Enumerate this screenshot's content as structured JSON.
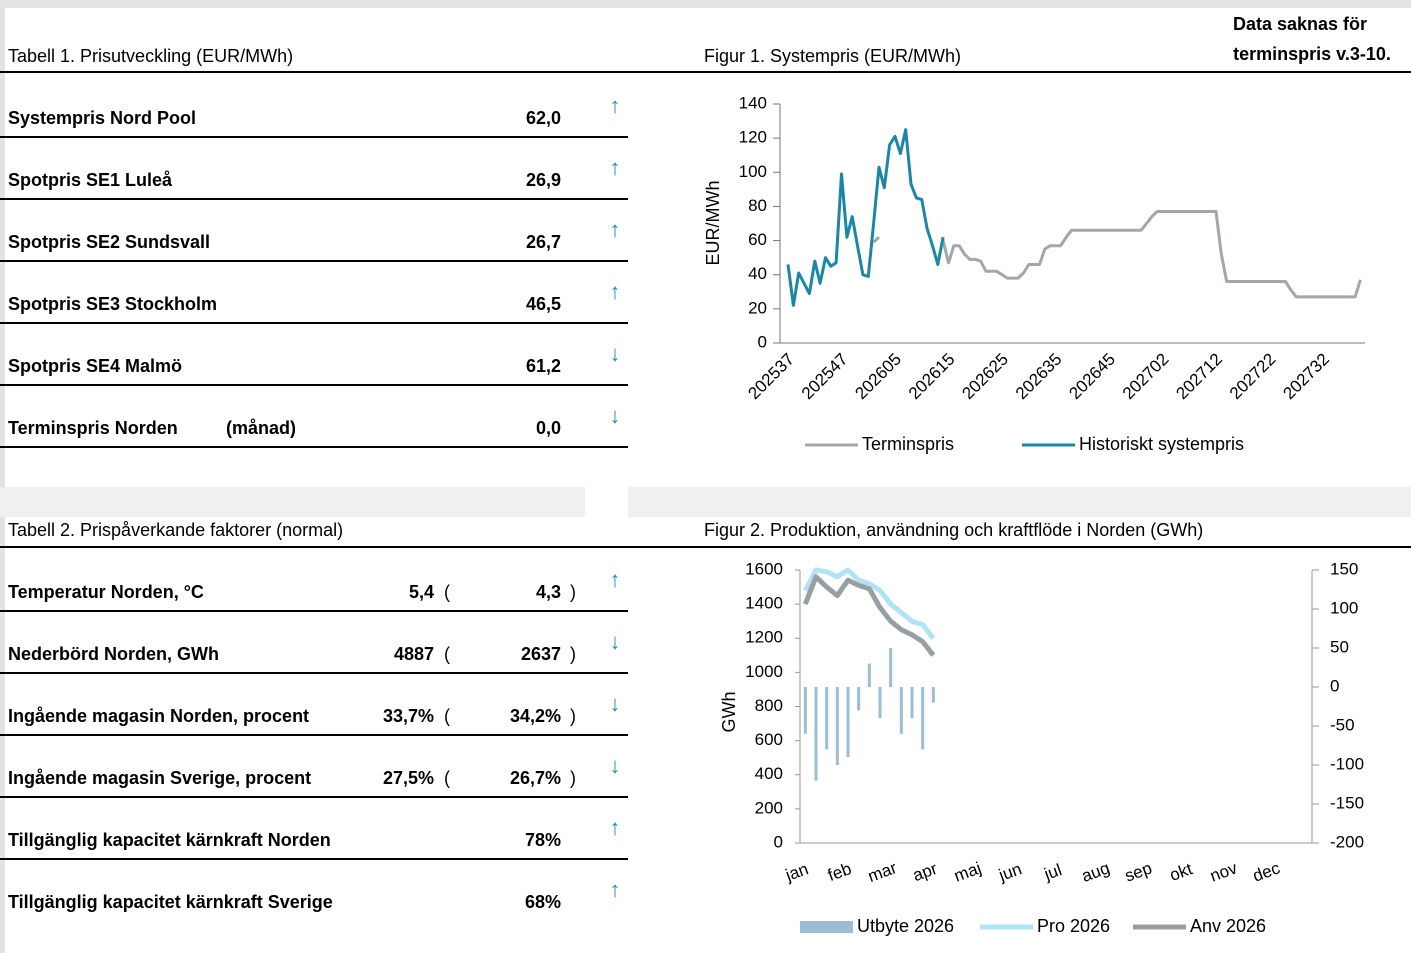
{
  "table1": {
    "title": "Tabell 1. Prisutveckling (EUR/MWh)",
    "rows": [
      {
        "label": "Systempris Nord Pool",
        "value": "62,0",
        "arrow": "↑"
      },
      {
        "label": "Spotpris SE1 Luleå",
        "value": "26,9",
        "arrow": "↑"
      },
      {
        "label": "Spotpris SE2 Sundsvall",
        "value": "26,7",
        "arrow": "↑"
      },
      {
        "label": "Spotpris SE3 Stockholm",
        "value": "46,5",
        "arrow": "↑"
      },
      {
        "label": "Spotpris SE4 Malmö",
        "value": "61,2",
        "arrow": "↓"
      },
      {
        "label": "Terminspris Norden",
        "qualifier": "(månad)",
        "value": "0,0",
        "arrow": "↓"
      }
    ]
  },
  "table2": {
    "title": "Tabell 2. Prispåverkande faktorer (normal)",
    "rows": [
      {
        "label": "Temperatur Norden, °C",
        "value": "5,4",
        "open": "(",
        "normal": "4,3",
        "close": ")",
        "arrow": "↑"
      },
      {
        "label": "Nederbörd Norden, GWh",
        "value": "4887",
        "open": "(",
        "normal": "2637",
        "close": ")",
        "arrow": "↓"
      },
      {
        "label": "Ingående magasin Norden, procent",
        "value": "33,7%",
        "open": "(",
        "normal": "34,2%",
        "close": ")",
        "arrow": "↓"
      },
      {
        "label": "Ingående magasin Sverige, procent",
        "value": "27,5%",
        "open": "(",
        "normal": "26,7%",
        "close": ")",
        "arrow": "↓"
      },
      {
        "label": "Tillgänglig kapacitet kärnkraft Norden",
        "value": "78%",
        "arrow": "↑"
      },
      {
        "label": "Tillgänglig kapacitet kärnkraft Sverige",
        "value": "68%",
        "arrow": "↑"
      }
    ]
  },
  "figure1": {
    "type": "line",
    "title": "Figur 1. Systempris (EUR/MWh)",
    "note": [
      "Data saknas för",
      "terminspris v.3-10."
    ],
    "y_label": "EUR/MWh",
    "ylim": [
      0,
      140
    ],
    "yticks": [
      0,
      20,
      40,
      60,
      80,
      100,
      120,
      140
    ],
    "categories": [
      "202537",
      null,
      null,
      null,
      null,
      null,
      null,
      null,
      null,
      null,
      "202547",
      null,
      null,
      null,
      null,
      null,
      null,
      null,
      null,
      null,
      "202605",
      null,
      null,
      null,
      null,
      null,
      null,
      null,
      null,
      null,
      "202615",
      null,
      null,
      null,
      null,
      null,
      null,
      null,
      null,
      null,
      "202625",
      null,
      null,
      null,
      null,
      null,
      null,
      null,
      null,
      null,
      "202635",
      null,
      null,
      null,
      null,
      null,
      null,
      null,
      null,
      null,
      "202645",
      null,
      null,
      null,
      null,
      null,
      null,
      null,
      null,
      null,
      "202702",
      null,
      null,
      null,
      null,
      null,
      null,
      null,
      null,
      null,
      "202712",
      null,
      null,
      null,
      null,
      null,
      null,
      null,
      null,
      null,
      "202722",
      null,
      null,
      null,
      null,
      null,
      null,
      null,
      null,
      null,
      "202732",
      null,
      null,
      null,
      null,
      null,
      null,
      null
    ],
    "series": [
      {
        "name": "Terminspris",
        "color": "#a0a8ad",
        "values": [
          null,
          null,
          null,
          null,
          null,
          null,
          null,
          null,
          null,
          null,
          null,
          null,
          null,
          null,
          null,
          null,
          59,
          62,
          null,
          null,
          null,
          null,
          null,
          null,
          null,
          null,
          null,
          null,
          null,
          60,
          47,
          57,
          57,
          52,
          49,
          49,
          48,
          42,
          42,
          42,
          40,
          38,
          38,
          38,
          41,
          46,
          46,
          46,
          55,
          57,
          57,
          57,
          62,
          66,
          66,
          66,
          66,
          66,
          66,
          66,
          66,
          66,
          66,
          66,
          66,
          66,
          66,
          70,
          74,
          77,
          77,
          77,
          77,
          77,
          77,
          77,
          77,
          77,
          77,
          77,
          77,
          52,
          36,
          36,
          36,
          36,
          36,
          36,
          36,
          36,
          36,
          36,
          36,
          36,
          31,
          27,
          27,
          27,
          27,
          27,
          27,
          27,
          27,
          27,
          27,
          27,
          27,
          37
        ]
      },
      {
        "name": "Historiskt systempris",
        "color": "#1b87a8",
        "values": [
          46,
          22,
          41,
          35,
          29,
          48,
          35,
          50,
          45,
          47,
          99,
          62,
          74,
          57,
          40,
          39,
          70,
          103,
          91,
          116,
          121,
          111,
          125,
          93,
          85,
          84,
          67,
          57,
          46,
          62,
          null,
          null,
          null,
          null,
          null,
          null,
          null,
          null,
          null,
          null,
          null,
          null,
          null,
          null,
          null,
          null,
          null,
          null,
          null,
          null,
          null,
          null,
          null,
          null,
          null,
          null,
          null,
          null,
          null,
          null,
          null,
          null,
          null,
          null,
          null,
          null,
          null,
          null,
          null,
          null,
          null,
          null,
          null,
          null,
          null,
          null,
          null,
          null,
          null,
          null,
          null,
          null,
          null,
          null,
          null,
          null,
          null,
          null,
          null,
          null,
          null,
          null,
          null,
          null,
          null,
          null,
          null,
          null,
          null,
          null,
          null,
          null,
          null,
          null,
          null,
          null,
          null,
          null
        ]
      }
    ]
  },
  "figure2": {
    "type": "line",
    "title": "Figur 2. Produktion, användning och kraftflöde i Norden (GWh)",
    "y_label": "GWh",
    "ylim": [
      0,
      1600
    ],
    "yticks": [
      0,
      200,
      400,
      600,
      800,
      1000,
      1200,
      1400,
      1600
    ],
    "y2lim": [
      -200,
      150
    ],
    "y2ticks": [
      -200,
      -150,
      -100,
      -50,
      0,
      50,
      100,
      150
    ],
    "categories": [
      "jan",
      null,
      null,
      null,
      "feb",
      null,
      null,
      null,
      "mar",
      null,
      null,
      null,
      "apr",
      null,
      null,
      null,
      "maj",
      null,
      null,
      null,
      "jun",
      null,
      null,
      null,
      "jul",
      null,
      null,
      null,
      "aug",
      null,
      null,
      null,
      "sep",
      null,
      null,
      null,
      "okt",
      null,
      null,
      null,
      "nov",
      null,
      null,
      null,
      "dec",
      null,
      null,
      null
    ],
    "series": [
      {
        "name": "Utbyte 2026",
        "color": "#9dbdd3",
        "axis": "y2",
        "values": [
          -60,
          -120,
          -80,
          -100,
          -90,
          -30,
          30,
          -40,
          50,
          -60,
          -40,
          -80,
          -20,
          null,
          null,
          null,
          null,
          null,
          null,
          null,
          null,
          null,
          null,
          null,
          null,
          null,
          null,
          null,
          null,
          null,
          null,
          null,
          null,
          null,
          null,
          null,
          null,
          null,
          null,
          null,
          null,
          null,
          null,
          null,
          null,
          null,
          null,
          null
        ]
      },
      {
        "name": "Pro 2026",
        "color": "#aee4f5",
        "values": [
          1480,
          1600,
          1590,
          1560,
          1600,
          1540,
          1520,
          1480,
          1400,
          1350,
          1300,
          1280,
          1200,
          null,
          null,
          null,
          null,
          null,
          null,
          null,
          null,
          null,
          null,
          null,
          null,
          null,
          null,
          null,
          null,
          null,
          null,
          null,
          null,
          null,
          null,
          null,
          null,
          null,
          null,
          null,
          null,
          null,
          null,
          null,
          null,
          null,
          null,
          null
        ]
      },
      {
        "name": "Anv 2026",
        "color": "#979ea4",
        "values": [
          1400,
          1560,
          1500,
          1450,
          1540,
          1510,
          1490,
          1380,
          1300,
          1250,
          1220,
          1180,
          1100,
          null,
          null,
          null,
          null,
          null,
          null,
          null,
          null,
          null,
          null,
          null,
          null,
          null,
          null,
          null,
          null,
          null,
          null,
          null,
          null,
          null,
          null,
          null,
          null,
          null,
          null,
          null,
          null,
          null,
          null,
          null,
          null,
          null,
          null,
          null
        ]
      }
    ]
  }
}
